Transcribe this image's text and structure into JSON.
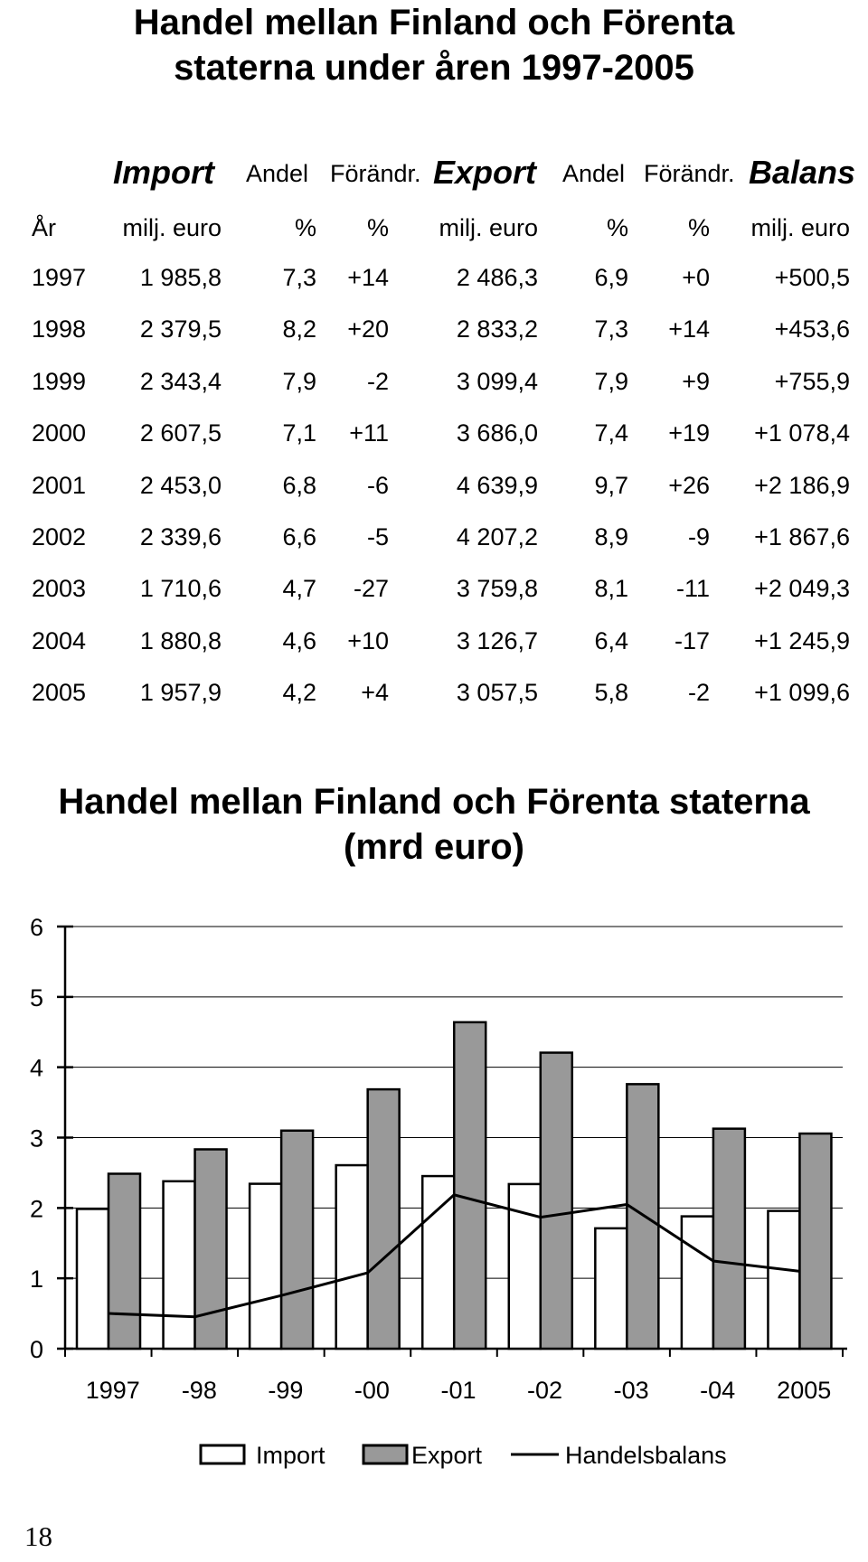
{
  "table": {
    "title_line1": "Handel mellan Finland och Förenta",
    "title_line2": "staterna under åren 1997-2005",
    "group_headers": {
      "import": "Import",
      "andel1": "Andel",
      "forandr1": "Förändr.",
      "export": "Export",
      "andel2": "Andel",
      "forandr2": "Förändr.",
      "balans": "Balans"
    },
    "unit_headers": {
      "year": "År",
      "import": "milj. euro",
      "andel1": "%",
      "forandr1": "%",
      "export": "milj. euro",
      "andel2": "%",
      "forandr2": "%",
      "balans": "milj. euro"
    },
    "rows": [
      {
        "year": "1997",
        "import": "1 985,8",
        "andel1": "7,3",
        "forandr1": "+14",
        "export": "2 486,3",
        "andel2": "6,9",
        "forandr2": "+0",
        "balans": "+500,5"
      },
      {
        "year": "1998",
        "import": "2 379,5",
        "andel1": "8,2",
        "forandr1": "+20",
        "export": "2 833,2",
        "andel2": "7,3",
        "forandr2": "+14",
        "balans": "+453,6"
      },
      {
        "year": "1999",
        "import": "2 343,4",
        "andel1": "7,9",
        "forandr1": "-2",
        "export": "3 099,4",
        "andel2": "7,9",
        "forandr2": "+9",
        "balans": "+755,9"
      },
      {
        "year": "2000",
        "import": "2 607,5",
        "andel1": "7,1",
        "forandr1": "+11",
        "export": "3 686,0",
        "andel2": "7,4",
        "forandr2": "+19",
        "balans": "+1 078,4"
      },
      {
        "year": "2001",
        "import": "2 453,0",
        "andel1": "6,8",
        "forandr1": "-6",
        "export": "4 639,9",
        "andel2": "9,7",
        "forandr2": "+26",
        "balans": "+2 186,9"
      },
      {
        "year": "2002",
        "import": "2 339,6",
        "andel1": "6,6",
        "forandr1": "-5",
        "export": "4 207,2",
        "andel2": "8,9",
        "forandr2": "-9",
        "balans": "+1 867,6"
      },
      {
        "year": "2003",
        "import": "1 710,6",
        "andel1": "4,7",
        "forandr1": "-27",
        "export": "3 759,8",
        "andel2": "8,1",
        "forandr2": "-11",
        "balans": "+2 049,3"
      },
      {
        "year": "2004",
        "import": "1 880,8",
        "andel1": "4,6",
        "forandr1": "+10",
        "export": "3 126,7",
        "andel2": "6,4",
        "forandr2": "-17",
        "balans": "+1 245,9"
      },
      {
        "year": "2005",
        "import": "1 957,9",
        "andel1": "4,2",
        "forandr1": "+4",
        "export": "3 057,5",
        "andel2": "5,8",
        "forandr2": "-2",
        "balans": "+1 099,6"
      }
    ]
  },
  "chart_data": {
    "type": "bar",
    "title_line1": "Handel mellan Finland och Förenta staterna",
    "title_line2": "(mrd euro)",
    "categories": [
      "1997",
      "-98",
      "-99",
      "-00",
      "-01",
      "-02",
      "-03",
      "-04",
      "2005"
    ],
    "series": [
      {
        "name": "Import",
        "type": "bar",
        "color": "#ffffff",
        "values": [
          1.9858,
          2.3795,
          2.3434,
          2.6075,
          2.453,
          2.3396,
          1.7106,
          1.8808,
          1.9579
        ]
      },
      {
        "name": "Export",
        "type": "bar",
        "color": "#999999",
        "values": [
          2.4863,
          2.8332,
          3.0994,
          3.686,
          4.6399,
          4.2072,
          3.7598,
          3.1267,
          3.0575
        ]
      },
      {
        "name": "Handelsbalans",
        "type": "line",
        "color": "#000000",
        "values": [
          0.5005,
          0.4536,
          0.7559,
          1.0784,
          2.1869,
          1.8676,
          2.0493,
          1.2459,
          1.0996
        ]
      }
    ],
    "ylim": [
      0,
      6
    ],
    "yticks": [
      "0",
      "1",
      "2",
      "3",
      "4",
      "5",
      "6"
    ],
    "grid": true,
    "legend_placement": "bottom"
  },
  "page_number": "18"
}
